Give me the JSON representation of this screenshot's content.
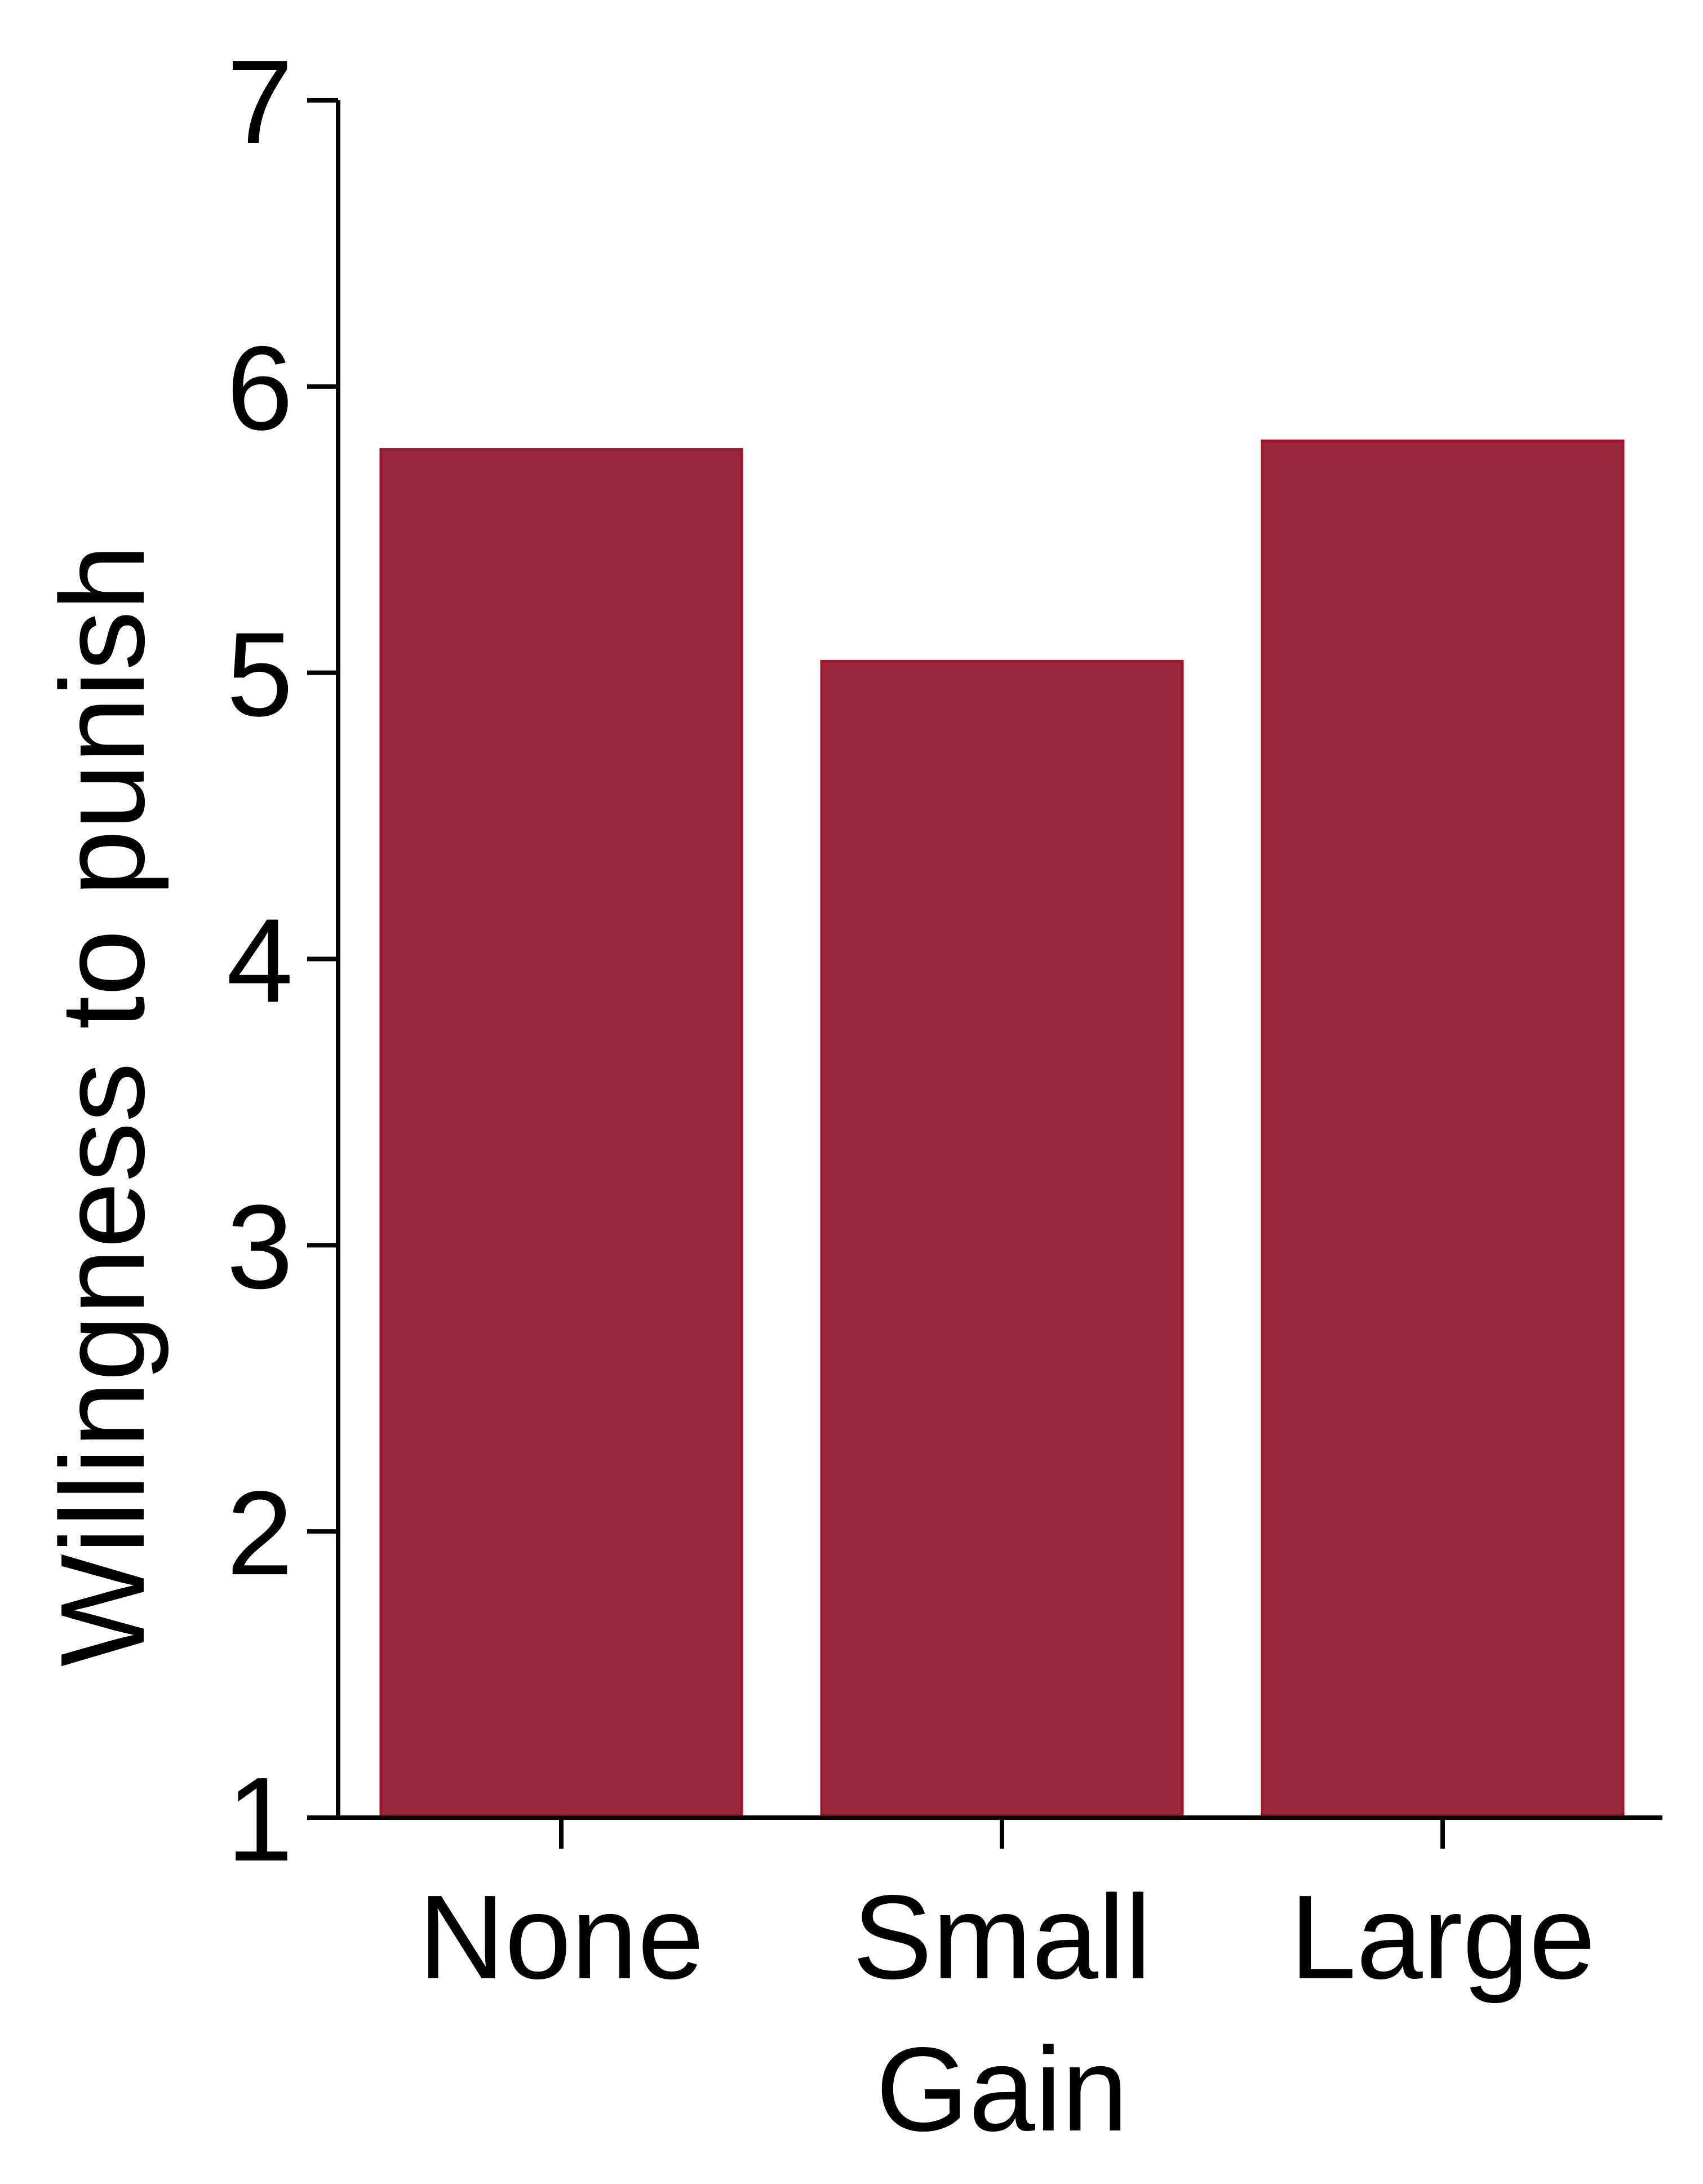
{
  "chart_data": {
    "type": "bar",
    "categories": [
      "None",
      "Small",
      "Large"
    ],
    "values": [
      5.78,
      5.04,
      5.81
    ],
    "xlabel": "Gain",
    "ylabel": "Willingness to punish",
    "ylim": [
      1,
      7
    ],
    "yticks": [
      1,
      2,
      3,
      4,
      5,
      6,
      7
    ],
    "grid": false,
    "legend": "none",
    "colors": {
      "bar_fill": "#98283a",
      "bar_edge": "#a3152c",
      "axis": "#000000"
    }
  }
}
